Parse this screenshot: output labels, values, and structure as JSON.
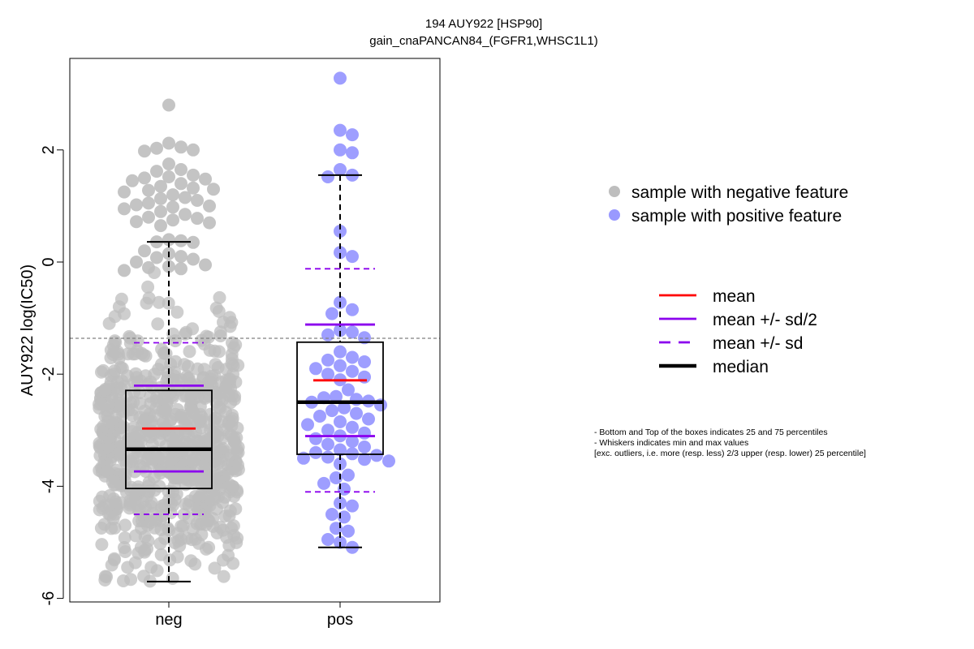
{
  "chart_data": {
    "type": "box-beeswarm",
    "title": "194 AUY922 [HSP90]",
    "subtitle": "gain_cnaPANCAN84_(FGFR1,WHSC1L1)",
    "xlabel": "",
    "ylabel": "AUY922 log(IC50)",
    "ylim": [
      -6.0,
      3.6
    ],
    "yticks": [
      2,
      0,
      -2,
      -4,
      -6
    ],
    "ytick_labels": [
      "2",
      "0",
      "-2",
      "-4",
      "-6"
    ],
    "categories": [
      "neg",
      "pos"
    ],
    "reference_line": -1.36,
    "grid": false,
    "colors": {
      "neg_points": "#BEBEBE",
      "pos_points": "#9999FF",
      "mean": "#FF0000",
      "sd": "#8B00EE",
      "median": "#000000",
      "reference": "#808080"
    },
    "groups": [
      {
        "name": "neg",
        "n": 820,
        "mean": -2.97,
        "sd": 1.53,
        "median": -3.34,
        "q1": -4.04,
        "q3": -2.29,
        "whisker_low": -5.7,
        "whisker_high": 0.36,
        "max": 2.8,
        "min": -5.7
      },
      {
        "name": "pos",
        "n": 72,
        "mean": -2.11,
        "sd": 1.99,
        "median": -2.5,
        "q1": -3.43,
        "q3": -1.43,
        "whisker_low": -5.09,
        "whisker_high": 1.55,
        "max": 3.28,
        "min": -5.09
      }
    ],
    "pos_values": [
      3.28,
      2.35,
      2.27,
      2.0,
      1.95,
      1.65,
      1.55,
      1.52,
      0.55,
      0.17,
      0.1,
      -0.72,
      -0.85,
      -0.92,
      -1.22,
      -1.25,
      -1.3,
      -1.35,
      -1.6,
      -1.7,
      -1.75,
      -1.78,
      -1.85,
      -1.9,
      -1.95,
      -2.0,
      -2.05,
      -2.1,
      -2.28,
      -2.4,
      -2.42,
      -2.45,
      -2.48,
      -2.5,
      -2.55,
      -2.6,
      -2.65,
      -2.7,
      -2.75,
      -2.8,
      -2.85,
      -2.9,
      -2.95,
      -3.0,
      -3.05,
      -3.1,
      -3.15,
      -3.2,
      -3.25,
      -3.3,
      -3.35,
      -3.4,
      -3.42,
      -3.45,
      -3.48,
      -3.5,
      -3.52,
      -3.55,
      -3.6,
      -3.8,
      -3.85,
      -3.95,
      -4.05,
      -4.3,
      -4.35,
      -4.5,
      -4.55,
      -4.75,
      -4.8,
      -4.95,
      -5.0,
      -5.09
    ],
    "neg_upper_values": [
      2.8,
      2.12,
      2.05,
      2.03,
      2.0,
      1.98,
      1.75,
      1.65,
      1.62,
      1.55,
      1.52,
      1.5,
      1.48,
      1.45,
      1.4,
      1.35,
      1.32,
      1.3,
      1.28,
      1.25,
      1.2,
      1.15,
      1.13,
      1.1,
      1.05,
      1.02,
      1.0,
      0.98,
      0.95,
      0.9,
      0.85,
      0.8,
      0.78,
      0.75,
      0.72,
      0.7,
      0.65,
      0.4,
      0.38,
      0.36,
      0.35,
      0.2,
      0.15,
      0.1,
      0.08,
      0.05,
      0.0,
      -0.05,
      -0.08,
      -0.1,
      -0.12,
      -0.15
    ],
    "legend": {
      "points": [
        {
          "label": "sample with negative feature",
          "color": "#BEBEBE"
        },
        {
          "label": "sample with positive feature",
          "color": "#9999FF"
        }
      ],
      "lines": [
        {
          "label": "mean",
          "color": "#FF0000",
          "style": "solid"
        },
        {
          "label": "mean +/- sd/2",
          "color": "#8B00EE",
          "style": "solid"
        },
        {
          "label": "mean +/- sd",
          "color": "#8B00EE",
          "style": "dashed"
        },
        {
          "label": "median",
          "color": "#000000",
          "style": "thick"
        }
      ],
      "placement": "right"
    },
    "notes": [
      "- Bottom and Top of the boxes indicates 25 and 75 percentiles",
      "- Whiskers indicates min and max values",
      "[exc. outliers, i.e. more (resp. less) 2/3 upper (resp. lower) 25 percentile]"
    ]
  }
}
